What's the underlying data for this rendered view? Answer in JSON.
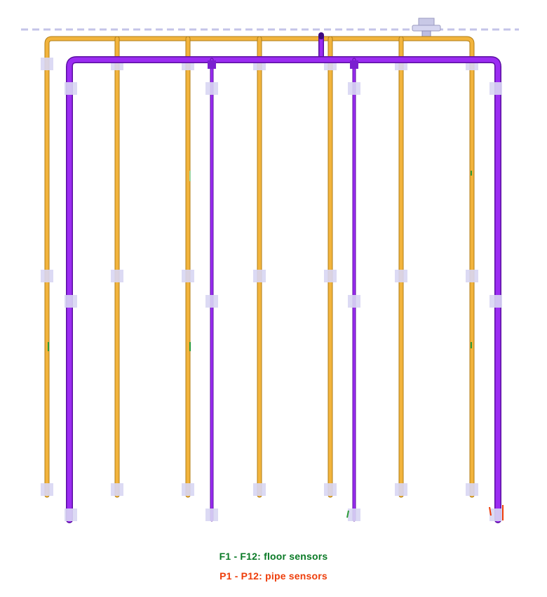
{
  "legend": {
    "floor_sensors": "F1 - F12:  floor sensors",
    "pipe_sensors": "P1 - P12:  pipe sensors"
  },
  "colors": {
    "background": "#ffffff",
    "supply_pipe": "#f2b43c",
    "supply_pipe_dark": "#b07d16",
    "return_pipe": "#9b2cf2",
    "return_pipe_dark": "#5a0fa0",
    "sensor_block": "#d8d6f3",
    "ceiling_line": "#c4c4e8",
    "floor_text": "#0a7a26",
    "pipe_text": "#ee3d0a",
    "valve": "#c8c8e6"
  },
  "icons": {
    "valve": "valve-fixture-icon"
  }
}
